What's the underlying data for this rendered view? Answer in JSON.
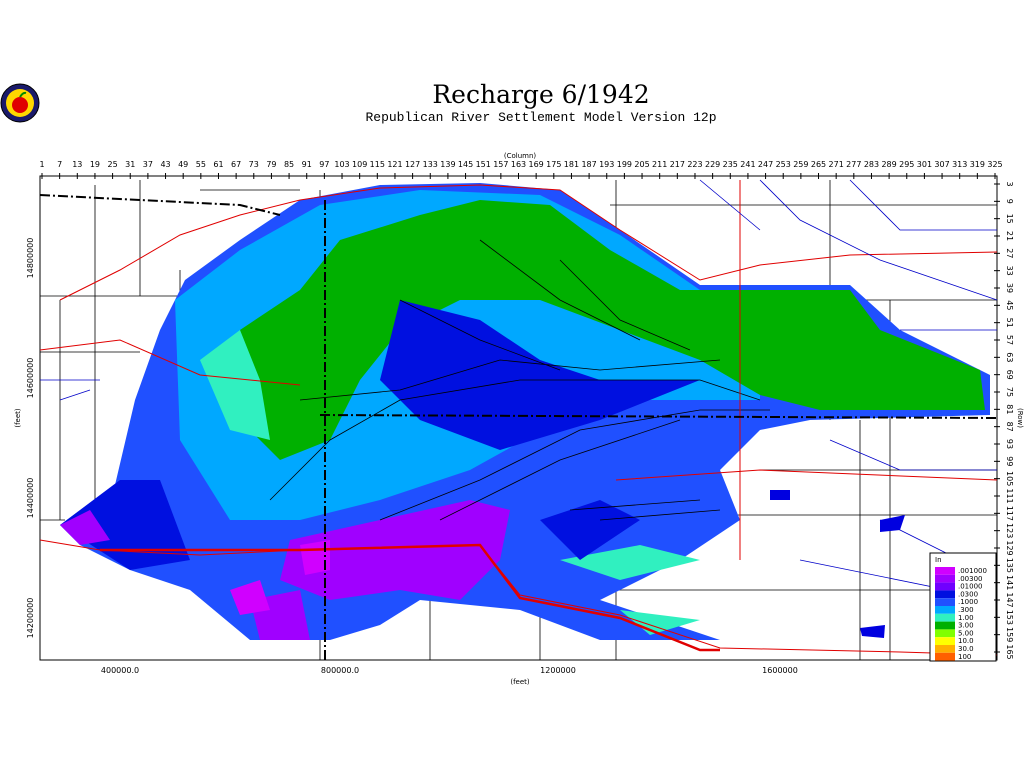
{
  "title": "Recharge  6/1942",
  "subtitle": "Republican River Settlement Model Version 12p",
  "axes": {
    "column_title": "(Column)",
    "row_title": "(Row)",
    "y_feet_title": "(feet)",
    "x_feet_title": "(feet)",
    "column_ticks": [
      1,
      7,
      13,
      19,
      25,
      31,
      37,
      43,
      49,
      55,
      61,
      67,
      73,
      79,
      85,
      91,
      97,
      103,
      109,
      115,
      121,
      127,
      133,
      139,
      145,
      151,
      157,
      163,
      169,
      175,
      181,
      187,
      193,
      199,
      205,
      211,
      217,
      223,
      229,
      235,
      241,
      247,
      253,
      259,
      265,
      271,
      277,
      283,
      289,
      295,
      301,
      307,
      313,
      319,
      325
    ],
    "row_ticks": [
      3,
      9,
      15,
      21,
      27,
      33,
      39,
      45,
      51,
      57,
      63,
      69,
      75,
      81,
      87,
      93,
      99,
      105,
      111,
      117,
      123,
      129,
      135,
      141,
      147,
      153,
      159,
      165
    ],
    "y_feet_labels": [
      "14800000",
      "14600000",
      "14400000",
      "14200000"
    ],
    "x_feet_labels": [
      "400000.0",
      "800000.0",
      "1200000",
      "1600000"
    ]
  },
  "legend": {
    "title": "In",
    "items": [
      {
        "label": ".001000",
        "color": "#d000ff"
      },
      {
        "label": ".00300",
        "color": "#a000ff"
      },
      {
        "label": ".01000",
        "color": "#7000ff"
      },
      {
        "label": ".0300",
        "color": "#0010e0"
      },
      {
        "label": ".1000",
        "color": "#2050ff"
      },
      {
        "label": ".300",
        "color": "#00a8ff"
      },
      {
        "label": "1.00",
        "color": "#30f0c0"
      },
      {
        "label": "3.00",
        "color": "#00b000"
      },
      {
        "label": "5.00",
        "color": "#80ff00"
      },
      {
        "label": "10.0",
        "color": "#ffff00"
      },
      {
        "label": "30.0",
        "color": "#ffb000"
      },
      {
        "label": "100",
        "color": "#ff6000"
      }
    ]
  }
}
